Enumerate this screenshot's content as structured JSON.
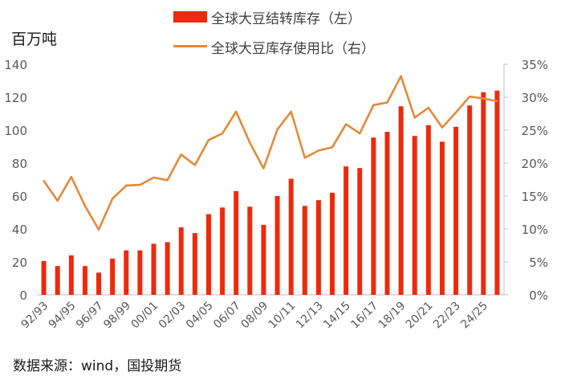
{
  "unit_label": "百万吨",
  "source": "数据来源：wind，国投期货",
  "legend": {
    "bar_label": "全球大豆结转库存（左）",
    "line_label": "全球大豆库存使用比（右）"
  },
  "colors": {
    "bar": "#ee2a0c",
    "line": "#e5893a",
    "axis": "#bfbfbf",
    "text": "#595959"
  },
  "chart_data": {
    "type": "bar+line",
    "categories": [
      "92/93",
      "93/94",
      "94/95",
      "95/96",
      "96/97",
      "97/98",
      "98/99",
      "99/00",
      "00/01",
      "01/02",
      "02/03",
      "03/04",
      "04/05",
      "05/06",
      "06/07",
      "07/08",
      "08/09",
      "09/10",
      "10/11",
      "11/12",
      "12/13",
      "13/14",
      "14/15",
      "15/16",
      "16/17",
      "17/18",
      "18/19",
      "19/20",
      "20/21",
      "21/22",
      "22/23",
      "23/24",
      "24/25",
      "25/26"
    ],
    "x_tick_labels": [
      "92/93",
      "94/95",
      "96/97",
      "98/99",
      "00/01",
      "02/03",
      "04/05",
      "06/07",
      "08/09",
      "10/11",
      "12/13",
      "14/15",
      "16/17",
      "18/19",
      "20/21",
      "22/23",
      "24/25"
    ],
    "series": [
      {
        "name": "全球大豆结转库存（左）",
        "type": "bar",
        "axis": "left",
        "values": [
          20.5,
          17.5,
          24,
          17.5,
          13.5,
          22,
          27,
          27,
          31,
          32,
          41,
          37.5,
          49,
          53,
          63,
          53.5,
          42.5,
          60,
          70.5,
          54,
          57.5,
          62,
          78,
          77,
          95.5,
          99,
          114.5,
          96.5,
          103,
          93,
          102,
          115,
          123,
          124
        ]
      },
      {
        "name": "全球大豆库存使用比（右）",
        "type": "line",
        "axis": "right",
        "values": [
          17.3,
          14.3,
          17.9,
          13.5,
          9.9,
          14.6,
          16.6,
          16.7,
          17.8,
          17.4,
          21.3,
          19.7,
          23.5,
          24.5,
          27.8,
          23.1,
          19.2,
          25.1,
          27.8,
          20.8,
          21.9,
          22.4,
          25.9,
          24.5,
          28.8,
          29.2,
          33.2,
          26.9,
          28.4,
          25.4,
          27.7,
          30.1,
          29.8,
          29.4
        ]
      }
    ],
    "y_left": {
      "min": 0,
      "max": 140,
      "step": 20,
      "tick_labels": [
        "0",
        "20",
        "40",
        "60",
        "80",
        "100",
        "120",
        "140"
      ]
    },
    "y_right": {
      "min": 0,
      "max": 35,
      "step": 5,
      "tick_labels": [
        "0%",
        "5%",
        "10%",
        "15%",
        "20%",
        "25%",
        "30%",
        "35%"
      ]
    },
    "grid": false,
    "legend_position": "top-center"
  }
}
